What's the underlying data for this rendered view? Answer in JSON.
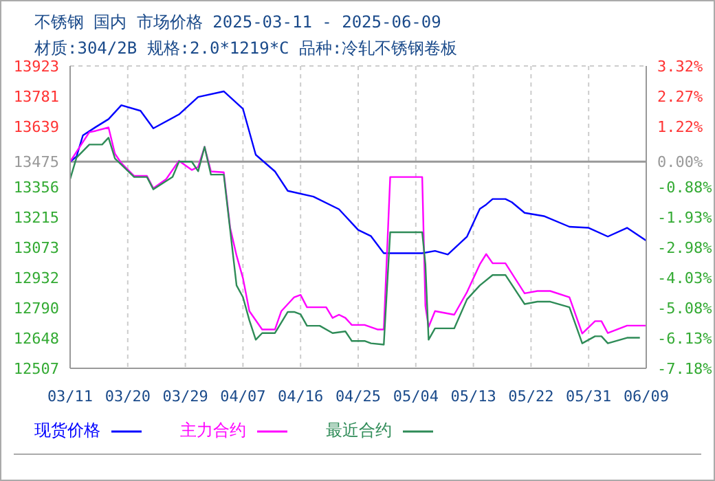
{
  "chart_data": {
    "type": "line",
    "title": "不锈钢 国内 市场价格 2025-03-11 - 2025-06-09",
    "subtitle": "材质:304/2B 规格:2.0*1219*C 品种:冷轧不锈钢卷板",
    "xlim": [
      "2025-03-11",
      "2025-06-09"
    ],
    "xticks": [
      {
        "value": "2025-03-11",
        "label": "03/11"
      },
      {
        "value": "2025-03-20",
        "label": "03/20"
      },
      {
        "value": "2025-03-29",
        "label": "03/29"
      },
      {
        "value": "2025-04-07",
        "label": "04/07"
      },
      {
        "value": "2025-04-16",
        "label": "04/16"
      },
      {
        "value": "2025-04-25",
        "label": "04/25"
      },
      {
        "value": "2025-05-04",
        "label": "05/04"
      },
      {
        "value": "2025-05-13",
        "label": "05/13"
      },
      {
        "value": "2025-05-22",
        "label": "05/22"
      },
      {
        "value": "2025-05-31",
        "label": "05/31"
      },
      {
        "value": "2025-06-09",
        "label": "06/09"
      }
    ],
    "ylim": [
      12507,
      13923
    ],
    "yticks": [
      13923,
      13781,
      13639,
      13475,
      13356,
      13215,
      13073,
      12932,
      12790,
      12648,
      12507
    ],
    "y2lim": [
      -7.18,
      3.32
    ],
    "y2ticks": [
      {
        "value": 3.32,
        "label": "3.32%"
      },
      {
        "value": 2.27,
        "label": "2.27%"
      },
      {
        "value": 1.22,
        "label": "1.22%"
      },
      {
        "value": 0,
        "label": "0.00%"
      },
      {
        "value": -0.88,
        "label": "-0.88%"
      },
      {
        "value": -1.93,
        "label": "-1.93%"
      },
      {
        "value": -2.98,
        "label": "-2.98%"
      },
      {
        "value": -4.03,
        "label": "-4.03%"
      },
      {
        "value": -5.08,
        "label": "-5.08%"
      },
      {
        "value": -6.13,
        "label": "-6.13%"
      },
      {
        "value": -7.18,
        "label": "-7.18%"
      }
    ],
    "ref_lines": [
      {
        "axis": "y",
        "value": 13475,
        "color": "#999999"
      }
    ],
    "grid": true,
    "legend": "bottom",
    "line_style": "solid",
    "series": [
      {
        "name": "现货价格",
        "color": "#0000ff",
        "x": [
          "2025-03-11",
          "2025-03-12",
          "2025-03-13",
          "2025-03-15",
          "2025-03-17",
          "2025-03-19",
          "2025-03-22",
          "2025-03-24",
          "2025-03-28",
          "2025-03-31",
          "2025-04-04",
          "2025-04-07",
          "2025-04-09",
          "2025-04-12",
          "2025-04-14",
          "2025-04-18",
          "2025-04-22",
          "2025-04-25",
          "2025-04-27",
          "2025-04-29",
          "2025-05-05",
          "2025-05-07",
          "2025-05-09",
          "2025-05-12",
          "2025-05-14",
          "2025-05-15",
          "2025-05-16",
          "2025-05-18",
          "2025-05-19",
          "2025-05-21",
          "2025-05-24",
          "2025-05-28",
          "2025-05-31",
          "2025-06-03",
          "2025-06-06",
          "2025-06-09"
        ],
        "values": [
          13475,
          13499,
          13598,
          13637,
          13674,
          13739,
          13713,
          13631,
          13696,
          13778,
          13804,
          13722,
          13507,
          13429,
          13338,
          13311,
          13252,
          13155,
          13126,
          13046,
          13046,
          13057,
          13040,
          13124,
          13254,
          13274,
          13300,
          13300,
          13285,
          13235,
          13220,
          13170,
          13165,
          13124,
          13165,
          13105
        ]
      },
      {
        "name": "主力合约",
        "color": "#ff00ff",
        "x": [
          "2025-03-11",
          "2025-03-14",
          "2025-03-15",
          "2025-03-17",
          "2025-03-18",
          "2025-03-19",
          "2025-03-21",
          "2025-03-23",
          "2025-03-24",
          "2025-03-26",
          "2025-03-28",
          "2025-03-30",
          "2025-03-31",
          "2025-04-01",
          "2025-04-02",
          "2025-04-04",
          "2025-04-05",
          "2025-04-06",
          "2025-04-07",
          "2025-04-08",
          "2025-04-10",
          "2025-04-12",
          "2025-04-13",
          "2025-04-15",
          "2025-04-16",
          "2025-04-17",
          "2025-04-20",
          "2025-04-21",
          "2025-04-22",
          "2025-04-23",
          "2025-04-24",
          "2025-04-26",
          "2025-04-28",
          "2025-04-29",
          "2025-04-30",
          "2025-05-05",
          "2025-05-05T12:00",
          "2025-05-06",
          "2025-05-07",
          "2025-05-10",
          "2025-05-12",
          "2025-05-14",
          "2025-05-15",
          "2025-05-16",
          "2025-05-18",
          "2025-05-21",
          "2025-05-23",
          "2025-05-25",
          "2025-05-28",
          "2025-05-30",
          "2025-06-01",
          "2025-06-02",
          "2025-06-03",
          "2025-06-06",
          "2025-06-09"
        ],
        "values": [
          13475,
          13613,
          13619,
          13635,
          13512,
          13468,
          13408,
          13408,
          13350,
          13393,
          13479,
          13436,
          13450,
          13544,
          13429,
          13425,
          13165,
          13035,
          12929,
          12775,
          12689,
          12689,
          12775,
          12840,
          12851,
          12793,
          12793,
          12743,
          12758,
          12743,
          12710,
          12710,
          12689,
          12689,
          13403,
          13403,
          12799,
          12701,
          12775,
          12758,
          12864,
          12994,
          13042,
          12999,
          12999,
          12858,
          12869,
          12869,
          12840,
          12670,
          12728,
          12728,
          12672,
          12707,
          12707
        ]
      },
      {
        "name": "最近合约",
        "color": "#2e8b57",
        "x": [
          "2025-03-11",
          "2025-03-12",
          "2025-03-14",
          "2025-03-16",
          "2025-03-17",
          "2025-03-18",
          "2025-03-21",
          "2025-03-23",
          "2025-03-24",
          "2025-03-27",
          "2025-03-28",
          "2025-03-30",
          "2025-03-31",
          "2025-04-01",
          "2025-04-02",
          "2025-04-04",
          "2025-04-06",
          "2025-04-07",
          "2025-04-08",
          "2025-04-09",
          "2025-04-10",
          "2025-04-12",
          "2025-04-14",
          "2025-04-15",
          "2025-04-16",
          "2025-04-17",
          "2025-04-19",
          "2025-04-21",
          "2025-04-23",
          "2025-04-24",
          "2025-04-26",
          "2025-04-27",
          "2025-04-29",
          "2025-04-30",
          "2025-05-05",
          "2025-05-05T12:00",
          "2025-05-06",
          "2025-05-07",
          "2025-05-10",
          "2025-05-12",
          "2025-05-14",
          "2025-05-16",
          "2025-05-18",
          "2025-05-21",
          "2025-05-23",
          "2025-05-25",
          "2025-05-28",
          "2025-05-30",
          "2025-06-01",
          "2025-06-02",
          "2025-06-03",
          "2025-06-06",
          "2025-06-08"
        ],
        "values": [
          13393,
          13494,
          13555,
          13555,
          13587,
          13490,
          13403,
          13403,
          13345,
          13403,
          13475,
          13475,
          13430,
          13544,
          13414,
          13414,
          12895,
          12840,
          12732,
          12641,
          12672,
          12672,
          12771,
          12771,
          12760,
          12706,
          12706,
          12672,
          12680,
          12635,
          12635,
          12624,
          12618,
          13144,
          13144,
          12994,
          12641,
          12694,
          12694,
          12830,
          12895,
          12944,
          12944,
          12808,
          12819,
          12819,
          12793,
          12624,
          12657,
          12657,
          12624,
          12650,
          12650
        ]
      }
    ]
  }
}
